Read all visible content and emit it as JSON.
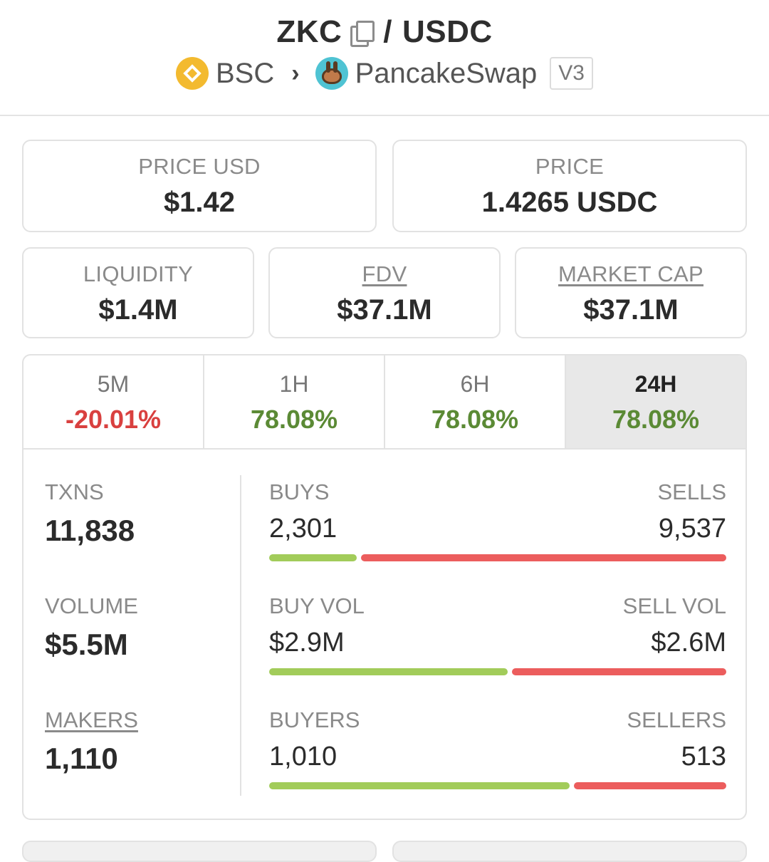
{
  "header": {
    "base_token": "ZKC",
    "separator": "/",
    "quote_token": "USDC",
    "chain": "BSC",
    "dex": "PancakeSwap",
    "version": "V3"
  },
  "price_cards": {
    "price_usd": {
      "label": "PRICE USD",
      "value": "$1.42"
    },
    "price": {
      "label": "PRICE",
      "value": "1.4265 USDC"
    },
    "liquidity": {
      "label": "LIQUIDITY",
      "value": "$1.4M"
    },
    "fdv": {
      "label": "FDV",
      "value": "$37.1M"
    },
    "market_cap": {
      "label": "MARKET CAP",
      "value": "$37.1M"
    }
  },
  "tabs": [
    {
      "label": "5M",
      "value": "-20.01%",
      "trend": "negative"
    },
    {
      "label": "1H",
      "value": "78.08%",
      "trend": "positive"
    },
    {
      "label": "6H",
      "value": "78.08%",
      "trend": "positive"
    },
    {
      "label": "24H",
      "value": "78.08%",
      "trend": "positive",
      "selected": true
    }
  ],
  "stats": {
    "txns": {
      "label": "TXNS",
      "value": "11,838"
    },
    "volume": {
      "label": "VOLUME",
      "value": "$5.5M"
    },
    "makers": {
      "label": "MAKERS",
      "value": "1,110"
    },
    "buys": {
      "label": "BUYS",
      "value": "2,301"
    },
    "sells": {
      "label": "SELLS",
      "value": "9,537"
    },
    "buy_vol": {
      "label": "BUY VOL",
      "value": "$2.9M"
    },
    "sell_vol": {
      "label": "SELL VOL",
      "value": "$2.6M"
    },
    "buyers": {
      "label": "BUYERS",
      "value": "1,010"
    },
    "sellers": {
      "label": "SELLERS",
      "value": "513"
    }
  },
  "ratios": {
    "txns_buy_fraction": 0.194,
    "volume_buy_fraction": 0.527,
    "makers_buy_fraction": 0.663
  },
  "colors": {
    "positive": "#5b8a35",
    "negative": "#d9403f",
    "buy_bar": "#a2cc5a",
    "sell_bar": "#ec5d5d",
    "bsc_brand": "#f3ba2f"
  }
}
